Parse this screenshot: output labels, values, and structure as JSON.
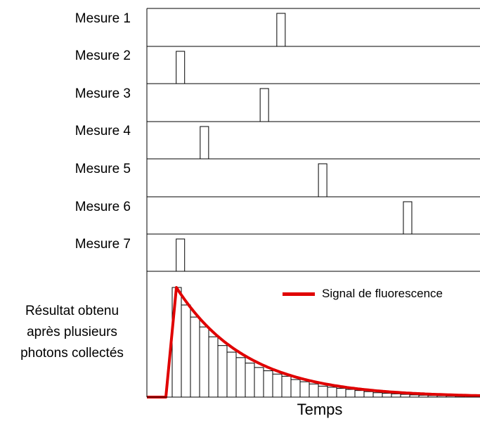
{
  "rows": [
    {
      "label": "Mesure 1",
      "pulse": 0.39
    },
    {
      "label": "Mesure 2",
      "pulse": 0.088
    },
    {
      "label": "Mesure 3",
      "pulse": 0.34
    },
    {
      "label": "Mesure 4",
      "pulse": 0.16
    },
    {
      "label": "Mesure 5",
      "pulse": 0.515
    },
    {
      "label": "Mesure 6",
      "pulse": 0.77
    },
    {
      "label": "Mesure 7",
      "pulse": 0.088
    }
  ],
  "result": {
    "label_lines": [
      "Résultat obtenu",
      "après plusieurs",
      "photons collectés"
    ],
    "legend": "Signal de fluorescence",
    "signal_color": "#e00000",
    "histogram_levels": [
      1.0,
      0.84,
      0.73,
      0.64,
      0.55,
      0.47,
      0.41,
      0.36,
      0.31,
      0.27,
      0.24,
      0.21,
      0.19,
      0.16,
      0.14,
      0.12,
      0.1,
      0.09,
      0.08,
      0.07,
      0.06,
      0.05,
      0.04,
      0.035,
      0.03,
      0.025,
      0.02,
      0.017,
      0.014,
      0.012,
      0.01,
      0.008
    ]
  },
  "xlabel": "Temps"
}
